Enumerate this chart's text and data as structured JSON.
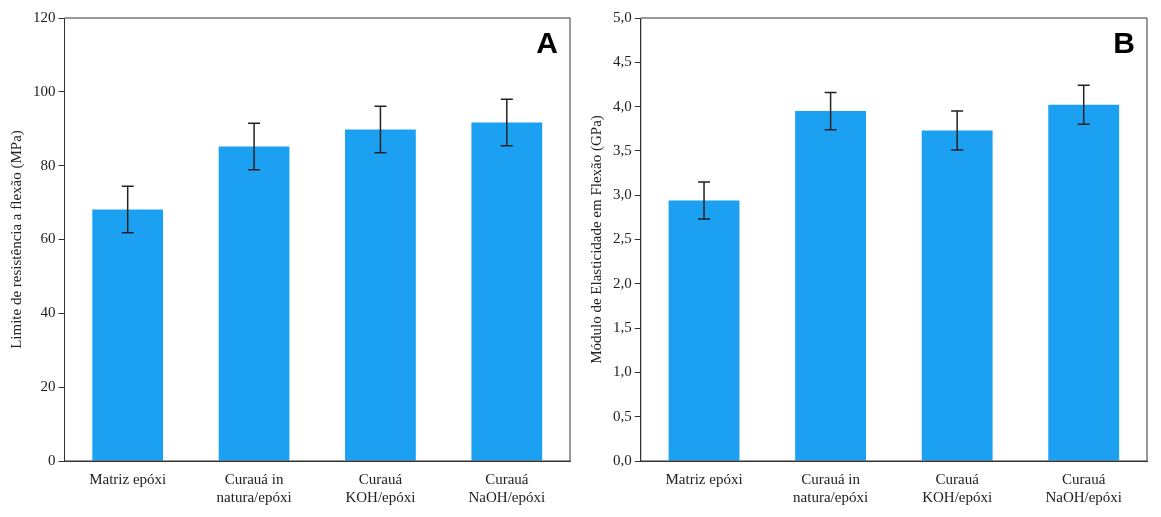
{
  "chart_data": [
    {
      "type": "bar",
      "ylabel": "Limite de resistência a flexão (MPa)",
      "annotations": [
        "A"
      ],
      "categories": [
        "Matriz epóxi",
        "Curauá in natura/epóxi",
        "Curauá KOH/epóxi",
        "Curauá NaOH/epóxi"
      ],
      "values": [
        68.1,
        85.2,
        89.8,
        91.7
      ],
      "errors": [
        6.3,
        6.3,
        6.3,
        6.3
      ],
      "color": "#1ca0f2",
      "ylim": [
        0,
        120
      ],
      "yticks": [
        0,
        20,
        40,
        60,
        80,
        100,
        120
      ],
      "grid": false
    },
    {
      "type": "bar",
      "ylabel": "Módulo de Elasticidade em Flexão (GPa)",
      "annotations": [
        "B"
      ],
      "categories": [
        "Matriz epóxi",
        "Curauá in natura/epóxi",
        "Curauá KOH/epóxi",
        "Curauá NaOH/epóxi"
      ],
      "values": [
        2.94,
        3.95,
        3.73,
        4.02
      ],
      "errors": [
        0.21,
        0.21,
        0.22,
        0.22
      ],
      "color": "#1ca0f2",
      "ylim": [
        0,
        5
      ],
      "yticks": [
        {
          "value": 0,
          "label": "0,0"
        },
        {
          "value": 0.5,
          "label": "0,5"
        },
        {
          "value": 1,
          "label": "1,0"
        },
        {
          "value": 1.5,
          "label": "1,5"
        },
        {
          "value": 2,
          "label": "2,0"
        },
        {
          "value": 2.5,
          "label": "2,5"
        },
        {
          "value": 3,
          "label": "3,0"
        },
        {
          "value": 3.5,
          "label": "3,5"
        },
        {
          "value": 4,
          "label": "4,0"
        },
        {
          "value": 4.5,
          "label": "4,5"
        },
        {
          "value": 5,
          "label": "5,0"
        }
      ],
      "grid": false
    }
  ]
}
